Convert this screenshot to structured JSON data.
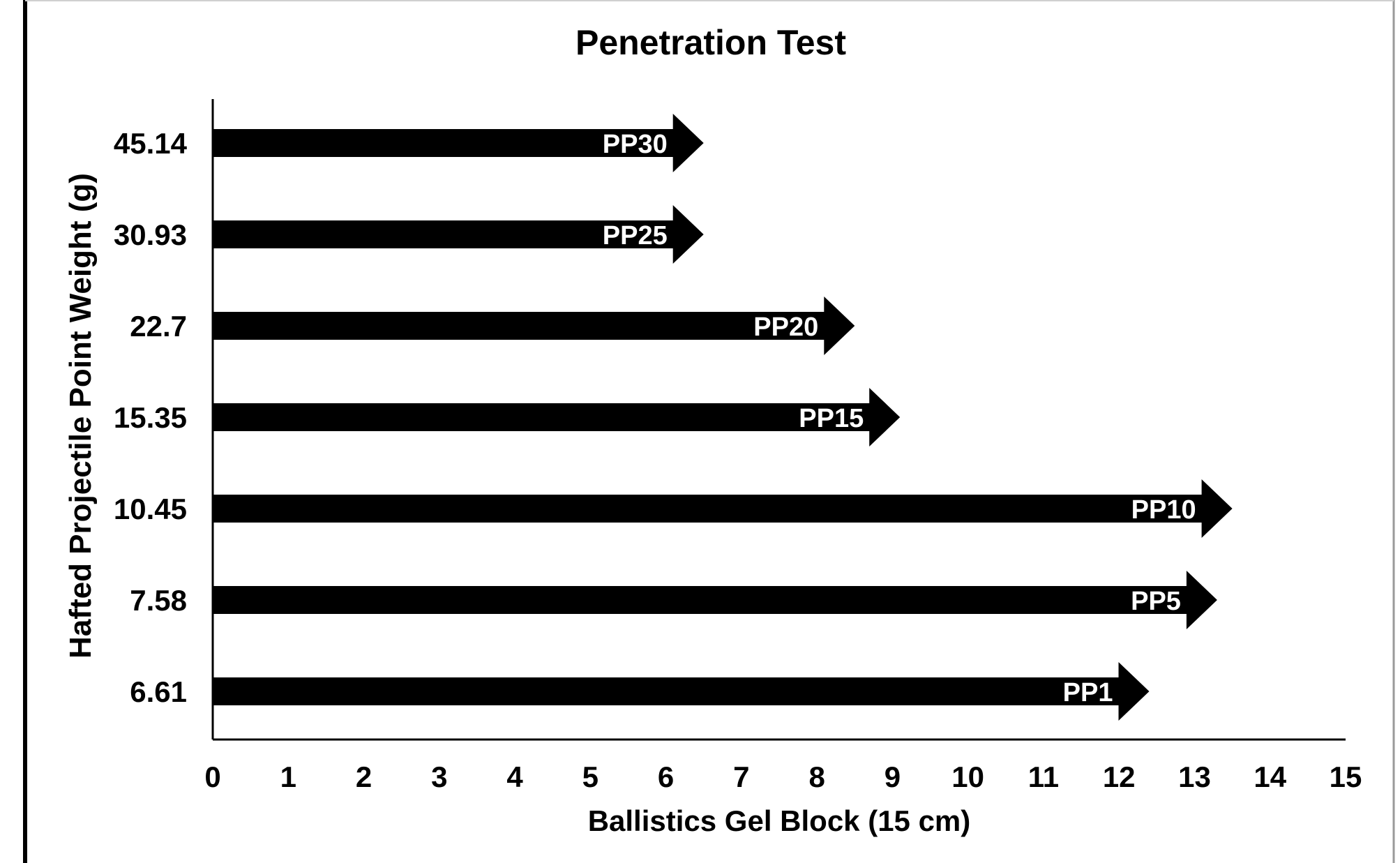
{
  "chart_data": {
    "type": "bar",
    "style": "arrow",
    "title": "Penetration Test",
    "xlabel": "Ballistics Gel Block (15 cm)",
    "ylabel": "Hafted Projectile Point Weight (g)",
    "xlim": [
      0,
      15
    ],
    "xticks": [
      "0",
      "1",
      "2",
      "3",
      "4",
      "5",
      "6",
      "7",
      "8",
      "9",
      "10",
      "11",
      "12",
      "13",
      "14",
      "15"
    ],
    "categories": [
      "45.14",
      "30.93",
      "22.7",
      "15.35",
      "10.45",
      "7.58",
      "6.61"
    ],
    "values": [
      6.5,
      6.5,
      8.5,
      9.1,
      13.5,
      13.3,
      12.4
    ],
    "point_labels": [
      "PP30",
      "PP25",
      "PP20",
      "PP15",
      "PP10",
      "PP5",
      "PP1"
    ],
    "grid": false,
    "legend": "none",
    "colors": {
      "bar": "#000000",
      "bar_label": "#ffffff",
      "text": "#000000",
      "background": "#ffffff"
    }
  }
}
